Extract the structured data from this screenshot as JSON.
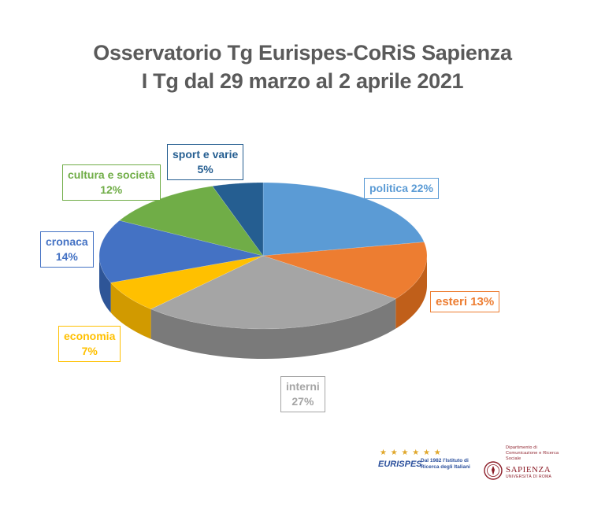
{
  "chart_data": {
    "type": "pie",
    "title": "Osservatorio Tg Eurispes-CoRiS Sapienza",
    "subtitle": "I Tg dal 29 marzo al 2 aprile 2021",
    "slices": [
      {
        "name": "politica",
        "value": 22,
        "label": "politica 22%",
        "color": "#5b9bd5",
        "side": "#3f7fb8"
      },
      {
        "name": "esteri",
        "value": 13,
        "label": "esteri 13%",
        "color": "#ed7d31",
        "side": "#c05f1a"
      },
      {
        "name": "interni",
        "value": 27,
        "label_name": "interni",
        "label_value": "27%",
        "color": "#a5a5a5",
        "side": "#7a7a7a"
      },
      {
        "name": "economia",
        "value": 7,
        "label_name": "economia",
        "label_value": "7%",
        "color": "#ffc000",
        "side": "#d19a00"
      },
      {
        "name": "cronaca",
        "value": 14,
        "label_name": "cronaca",
        "label_value": "14%",
        "color": "#4472c4",
        "side": "#2e5597"
      },
      {
        "name": "cultura e società",
        "value": 12,
        "label_name": "cultura e società",
        "label_value": "12%",
        "color": "#70ad47",
        "side": "#538435"
      },
      {
        "name": "sport e varie",
        "value": 5,
        "label_name": "sport e varie",
        "label_value": "5%",
        "color": "#255e91",
        "side": "#1a4368"
      }
    ]
  },
  "logos": {
    "eurispes": {
      "name": "EURISPES",
      "stars": "★ ★ ★ ★ ★ ★",
      "tagline": "Dal 1982 l'Istituto di Ricerca degli Italiani"
    },
    "sapienza": {
      "department": "Dipartimento di Comunicazione e Ricerca Sociale",
      "name": "SAPIENZA",
      "university": "UNIVERSITÀ DI ROMA"
    }
  }
}
